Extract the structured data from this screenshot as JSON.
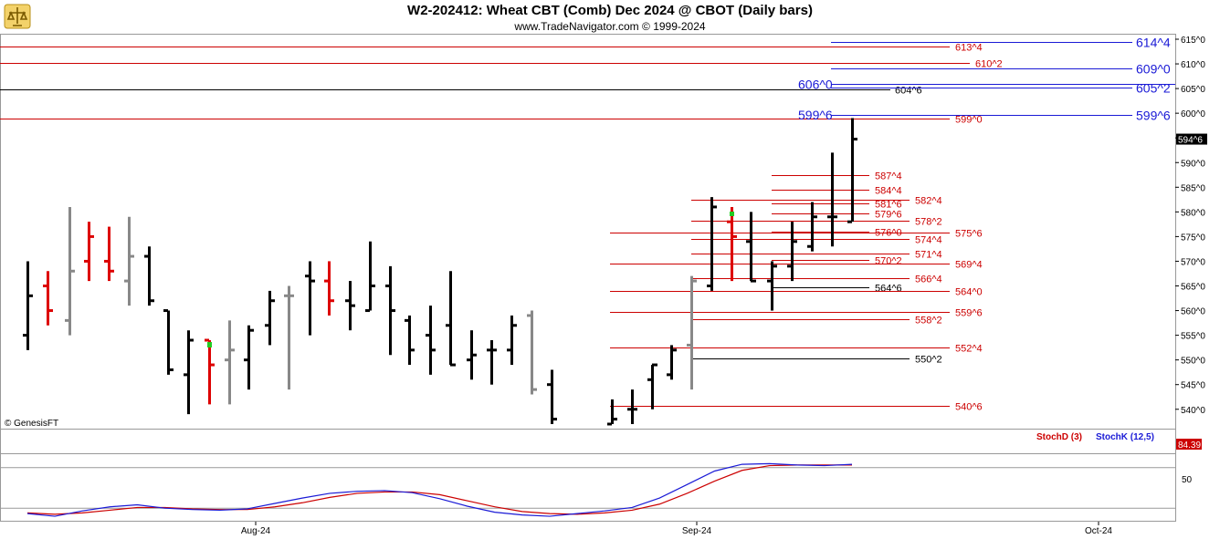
{
  "header": {
    "title": "W2-202412:  Wheat CBT (Comb) Dec 2024 @ CBOT  (Daily bars)",
    "subtitle": "www.TradeNavigator.com © 1999-2024",
    "logo_icon": "trade-navigator-logo-icon"
  },
  "footer": {
    "copyright": "© GenesisFT"
  },
  "colors": {
    "up": "#000000",
    "down_red": "#dd0000",
    "gray": "#888888",
    "blue": "#1a1ad6",
    "red_line": "#cc0000",
    "green_tick": "#22cc22"
  },
  "price_axis": {
    "ticks": [
      "615^0",
      "610^0",
      "605^0",
      "600^0",
      "595^0",
      "590^0",
      "585^0",
      "580^0",
      "575^0",
      "570^0",
      "565^0",
      "560^0",
      "555^0",
      "550^0",
      "545^0",
      "540^0"
    ],
    "current_label": "594^6"
  },
  "stoch_axis": {
    "tick": "50",
    "current_label": "84.39",
    "legend_d": "StochD (3)",
    "legend_k": "StochK (12,5)"
  },
  "time_axis": [
    "Aug-24",
    "Sep-24",
    "Oct-24"
  ],
  "chart_data": {
    "type": "ohlc",
    "title": "W2-202412:  Wheat CBT (Comb) Dec 2024 @ CBOT  (Daily bars)",
    "ylim": [
      538,
      616.5
    ],
    "bars": [
      {
        "c": "black",
        "o": 555,
        "h": 570,
        "l": 552,
        "cl": 563
      },
      {
        "c": "red",
        "o": 565,
        "h": 568,
        "l": 557,
        "cl": 560
      },
      {
        "c": "gray",
        "o": 558,
        "h": 581,
        "l": 555,
        "cl": 568
      },
      {
        "c": "red",
        "o": 570,
        "h": 578,
        "l": 566,
        "cl": 575
      },
      {
        "c": "red",
        "o": 570,
        "h": 577,
        "l": 566,
        "cl": 568
      },
      {
        "c": "gray",
        "o": 566,
        "h": 579,
        "l": 561,
        "cl": 571
      },
      {
        "c": "black",
        "o": 571,
        "h": 573,
        "l": 561,
        "cl": 562
      },
      {
        "c": "black",
        "o": 560,
        "h": 560,
        "l": 547,
        "cl": 548
      },
      {
        "c": "black",
        "o": 547,
        "h": 556,
        "l": 539,
        "cl": 554
      },
      {
        "c": "red",
        "o": 554,
        "h": 554,
        "l": 541,
        "cl": 549
      },
      {
        "c": "gray",
        "o": 550,
        "h": 558,
        "l": 541,
        "cl": 552
      },
      {
        "c": "black",
        "o": 550,
        "h": 557,
        "l": 544,
        "cl": 556
      },
      {
        "c": "black",
        "o": 557,
        "h": 564,
        "l": 553,
        "cl": 562
      },
      {
        "c": "gray",
        "o": 563,
        "h": 565,
        "l": 544,
        "cl": 563
      },
      {
        "c": "black",
        "o": 567,
        "h": 570,
        "l": 555,
        "cl": 566
      },
      {
        "c": "red",
        "o": 566,
        "h": 570,
        "l": 559,
        "cl": 562
      },
      {
        "c": "black",
        "o": 562,
        "h": 566,
        "l": 556,
        "cl": 561
      },
      {
        "c": "black",
        "o": 560,
        "h": 574,
        "l": 560,
        "cl": 565
      },
      {
        "c": "black",
        "o": 565,
        "h": 569,
        "l": 551,
        "cl": 560
      },
      {
        "c": "black",
        "o": 558,
        "h": 559,
        "l": 549,
        "cl": 552
      },
      {
        "c": "black",
        "o": 555,
        "h": 561,
        "l": 547,
        "cl": 552
      },
      {
        "c": "black",
        "o": 557,
        "h": 568,
        "l": 549,
        "cl": 549
      },
      {
        "c": "black",
        "o": 550,
        "h": 556,
        "l": 546,
        "cl": 551
      },
      {
        "c": "black",
        "o": 552,
        "h": 554,
        "l": 545,
        "cl": 552
      },
      {
        "c": "black",
        "o": 552,
        "h": 559,
        "l": 549,
        "cl": 557
      },
      {
        "c": "gray",
        "o": 559,
        "h": 560,
        "l": 543,
        "cl": 544
      },
      {
        "c": "black",
        "o": 545,
        "h": 548,
        "l": 537,
        "cl": 538
      }
    ],
    "bars2": [
      {
        "c": "black",
        "o": 537,
        "h": 542,
        "l": 537,
        "cl": 538
      },
      {
        "c": "black",
        "o": 540,
        "h": 544,
        "l": 537,
        "cl": 540
      },
      {
        "c": "black",
        "o": 546,
        "h": 549,
        "l": 540,
        "cl": 549
      },
      {
        "c": "black",
        "o": 547,
        "h": 553,
        "l": 546,
        "cl": 552
      },
      {
        "c": "gray",
        "o": 553,
        "h": 567,
        "l": 544,
        "cl": 566
      },
      {
        "c": "black",
        "o": 565,
        "h": 583,
        "l": 564,
        "cl": 581
      },
      {
        "c": "red",
        "o": 578,
        "h": 581,
        "l": 566,
        "cl": 575
      },
      {
        "c": "black",
        "o": 574,
        "h": 580,
        "l": 566,
        "cl": 566
      },
      {
        "c": "black",
        "o": 566,
        "h": 570,
        "l": 560,
        "cl": 569
      },
      {
        "c": "black",
        "o": 569,
        "h": 578,
        "l": 566,
        "cl": 574
      },
      {
        "c": "black",
        "o": 573,
        "h": 582,
        "l": 572,
        "cl": 579
      },
      {
        "c": "black",
        "o": 579,
        "h": 592,
        "l": 573,
        "cl": 579
      },
      {
        "c": "black",
        "o": 578,
        "h": 599,
        "l": 578,
        "cl": 594.75
      }
    ],
    "levels_blue": [
      {
        "label": "614^4",
        "value": 614.5
      },
      {
        "label": "609^0",
        "value": 609
      },
      {
        "label": "606^0",
        "value": 606
      },
      {
        "label": "605^2",
        "value": 605.25
      },
      {
        "label": "599^6",
        "value": 599.75
      }
    ],
    "levels_red": [
      {
        "label": "613^4",
        "value": 613.5
      },
      {
        "label": "610^2",
        "value": 610.25
      },
      {
        "label": "604^6",
        "value": 604.75
      },
      {
        "label": "599^0",
        "value": 599
      },
      {
        "label": "587^4",
        "value": 587.5
      },
      {
        "label": "584^4",
        "value": 584.5
      },
      {
        "label": "582^4",
        "value": 582.5
      },
      {
        "label": "581^6",
        "value": 581.75
      },
      {
        "label": "579^6",
        "value": 579.75
      },
      {
        "label": "578^2",
        "value": 578.25
      },
      {
        "label": "576^0",
        "value": 576
      },
      {
        "label": "575^6",
        "value": 575.75
      },
      {
        "label": "574^4",
        "value": 574.5
      },
      {
        "label": "571^4",
        "value": 571.5
      },
      {
        "label": "570^2",
        "value": 570.25
      },
      {
        "label": "569^4",
        "value": 569.5
      },
      {
        "label": "566^4",
        "value": 566.5
      },
      {
        "label": "564^6",
        "value": 564.75
      },
      {
        "label": "564^0",
        "value": 564
      },
      {
        "label": "559^6",
        "value": 559.75
      },
      {
        "label": "558^2",
        "value": 558.25
      },
      {
        "label": "552^4",
        "value": 552.5
      },
      {
        "label": "550^2",
        "value": 550.25
      },
      {
        "label": "540^6",
        "value": 540.75
      }
    ],
    "stoch_k": [
      12,
      8,
      16,
      22,
      25,
      20,
      18,
      17,
      19,
      27,
      35,
      42,
      45,
      46,
      43,
      34,
      23,
      14,
      10,
      8,
      12,
      16,
      21,
      35,
      55,
      75,
      85,
      86,
      84,
      83,
      85
    ],
    "stoch_d": [
      13,
      11,
      13,
      17,
      21,
      21,
      19,
      18,
      18,
      22,
      28,
      36,
      42,
      44,
      44,
      40,
      31,
      22,
      15,
      12,
      11,
      13,
      17,
      26,
      42,
      60,
      76,
      83,
      84,
      84,
      84
    ],
    "stoch_ylim": [
      0,
      100
    ]
  }
}
